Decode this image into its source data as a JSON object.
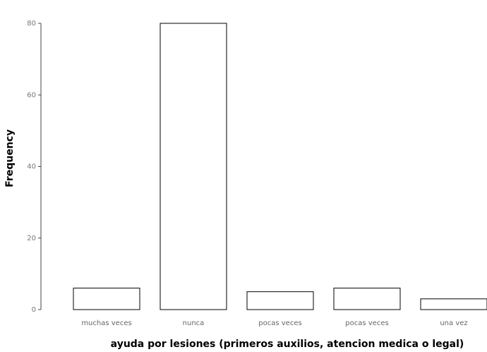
{
  "chart_data": {
    "type": "bar",
    "categories": [
      "muchas veces",
      "nunca",
      "pocas veces",
      "pocas veces",
      "una vez"
    ],
    "values": [
      6,
      80,
      5,
      6,
      3
    ],
    "xlabel": "ayuda por lesiones (primeros auxilios, atencion medica o legal)",
    "ylabel": "Frequency",
    "ylim": [
      0,
      80
    ],
    "yticks": [
      0,
      20,
      40,
      60,
      80
    ],
    "grid": false,
    "colors": {
      "bar_fill": "#ffffff",
      "bar_stroke": "#000000",
      "text": "#000000",
      "tick_text": "#666666"
    }
  }
}
